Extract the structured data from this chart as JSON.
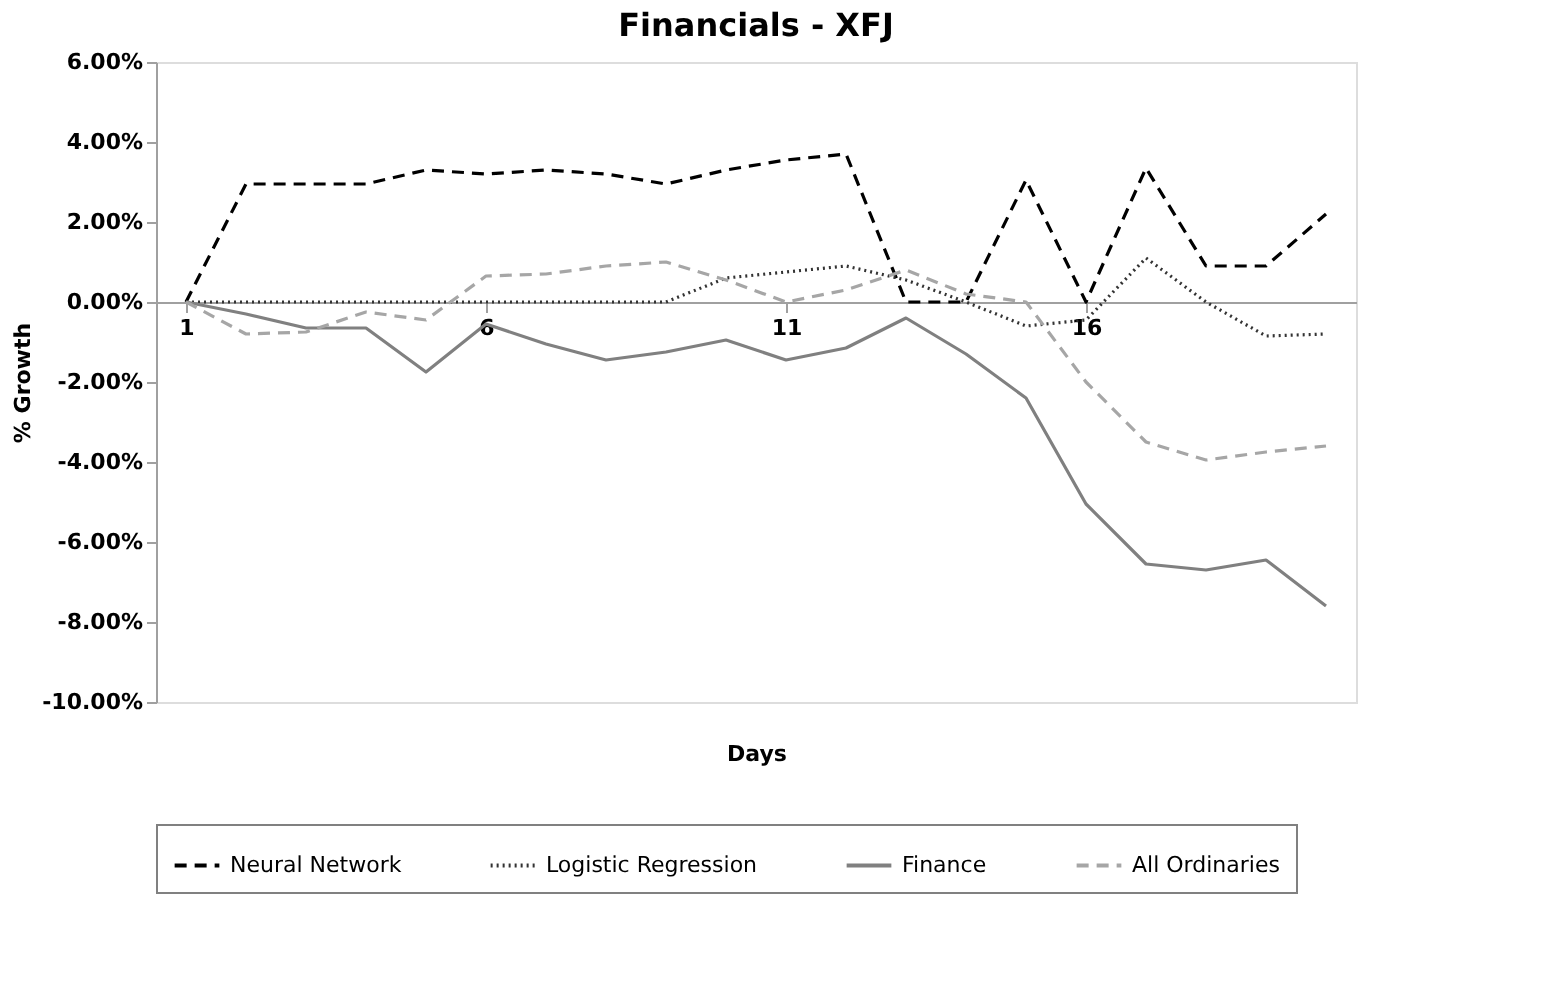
{
  "chart_data": {
    "type": "line",
    "title": "Financials - XFJ",
    "xlabel": "Days",
    "ylabel": "% Growth",
    "x": [
      1,
      2,
      3,
      4,
      5,
      6,
      7,
      8,
      9,
      10,
      11,
      12,
      13,
      14,
      15,
      16,
      17,
      18,
      19,
      20
    ],
    "xlim": [
      0.5,
      20.5
    ],
    "xticks": [
      1,
      6,
      11,
      16
    ],
    "ylim": [
      -10,
      6
    ],
    "yticks": [
      {
        "value": -10,
        "label": "-10.00%"
      },
      {
        "value": -8,
        "label": "-8.00%"
      },
      {
        "value": -6,
        "label": "-6.00%"
      },
      {
        "value": -4,
        "label": "-4.00%"
      },
      {
        "value": -2,
        "label": "-2.00%"
      },
      {
        "value": 0,
        "label": "0.00%"
      },
      {
        "value": 2,
        "label": "2.00%"
      },
      {
        "value": 4,
        "label": "4.00%"
      },
      {
        "value": 6,
        "label": "6.00%"
      }
    ],
    "grid": false,
    "legend": "bottom",
    "marker": "none",
    "series": [
      {
        "name": "Neural Network",
        "color": "#000000",
        "line_style": "dashed",
        "values": [
          0,
          2.95,
          2.95,
          2.95,
          3.3,
          3.2,
          3.3,
          3.2,
          2.95,
          3.3,
          3.55,
          3.7,
          0,
          0,
          3.05,
          0,
          3.35,
          0.9,
          0.9,
          2.2
        ]
      },
      {
        "name": "Logistic Regression",
        "color": "#333333",
        "line_style": "dotted",
        "values": [
          0,
          0,
          0,
          0,
          0,
          0,
          0,
          0,
          0,
          0.6,
          0.75,
          0.9,
          0.55,
          0,
          -0.6,
          -0.45,
          1.1,
          0,
          -0.85,
          -0.8
        ]
      },
      {
        "name": "Finance",
        "color": "#808080",
        "line_style": "solid",
        "values": [
          0,
          -0.3,
          -0.65,
          -0.65,
          -1.75,
          -0.55,
          -1.05,
          -1.45,
          -1.25,
          -0.95,
          -1.45,
          -1.15,
          -0.4,
          -1.3,
          -2.4,
          -5.05,
          -6.55,
          -6.7,
          -6.45,
          -7.6
        ]
      },
      {
        "name": "All Ordinaries",
        "color": "#a6a6a6",
        "line_style": "dashed",
        "values": [
          0,
          -0.8,
          -0.75,
          -0.25,
          -0.45,
          0.65,
          0.7,
          0.9,
          1.0,
          0.55,
          0.0,
          0.3,
          0.8,
          0.2,
          0.0,
          -2.0,
          -3.5,
          -3.95,
          -3.75,
          -3.6
        ]
      }
    ]
  }
}
